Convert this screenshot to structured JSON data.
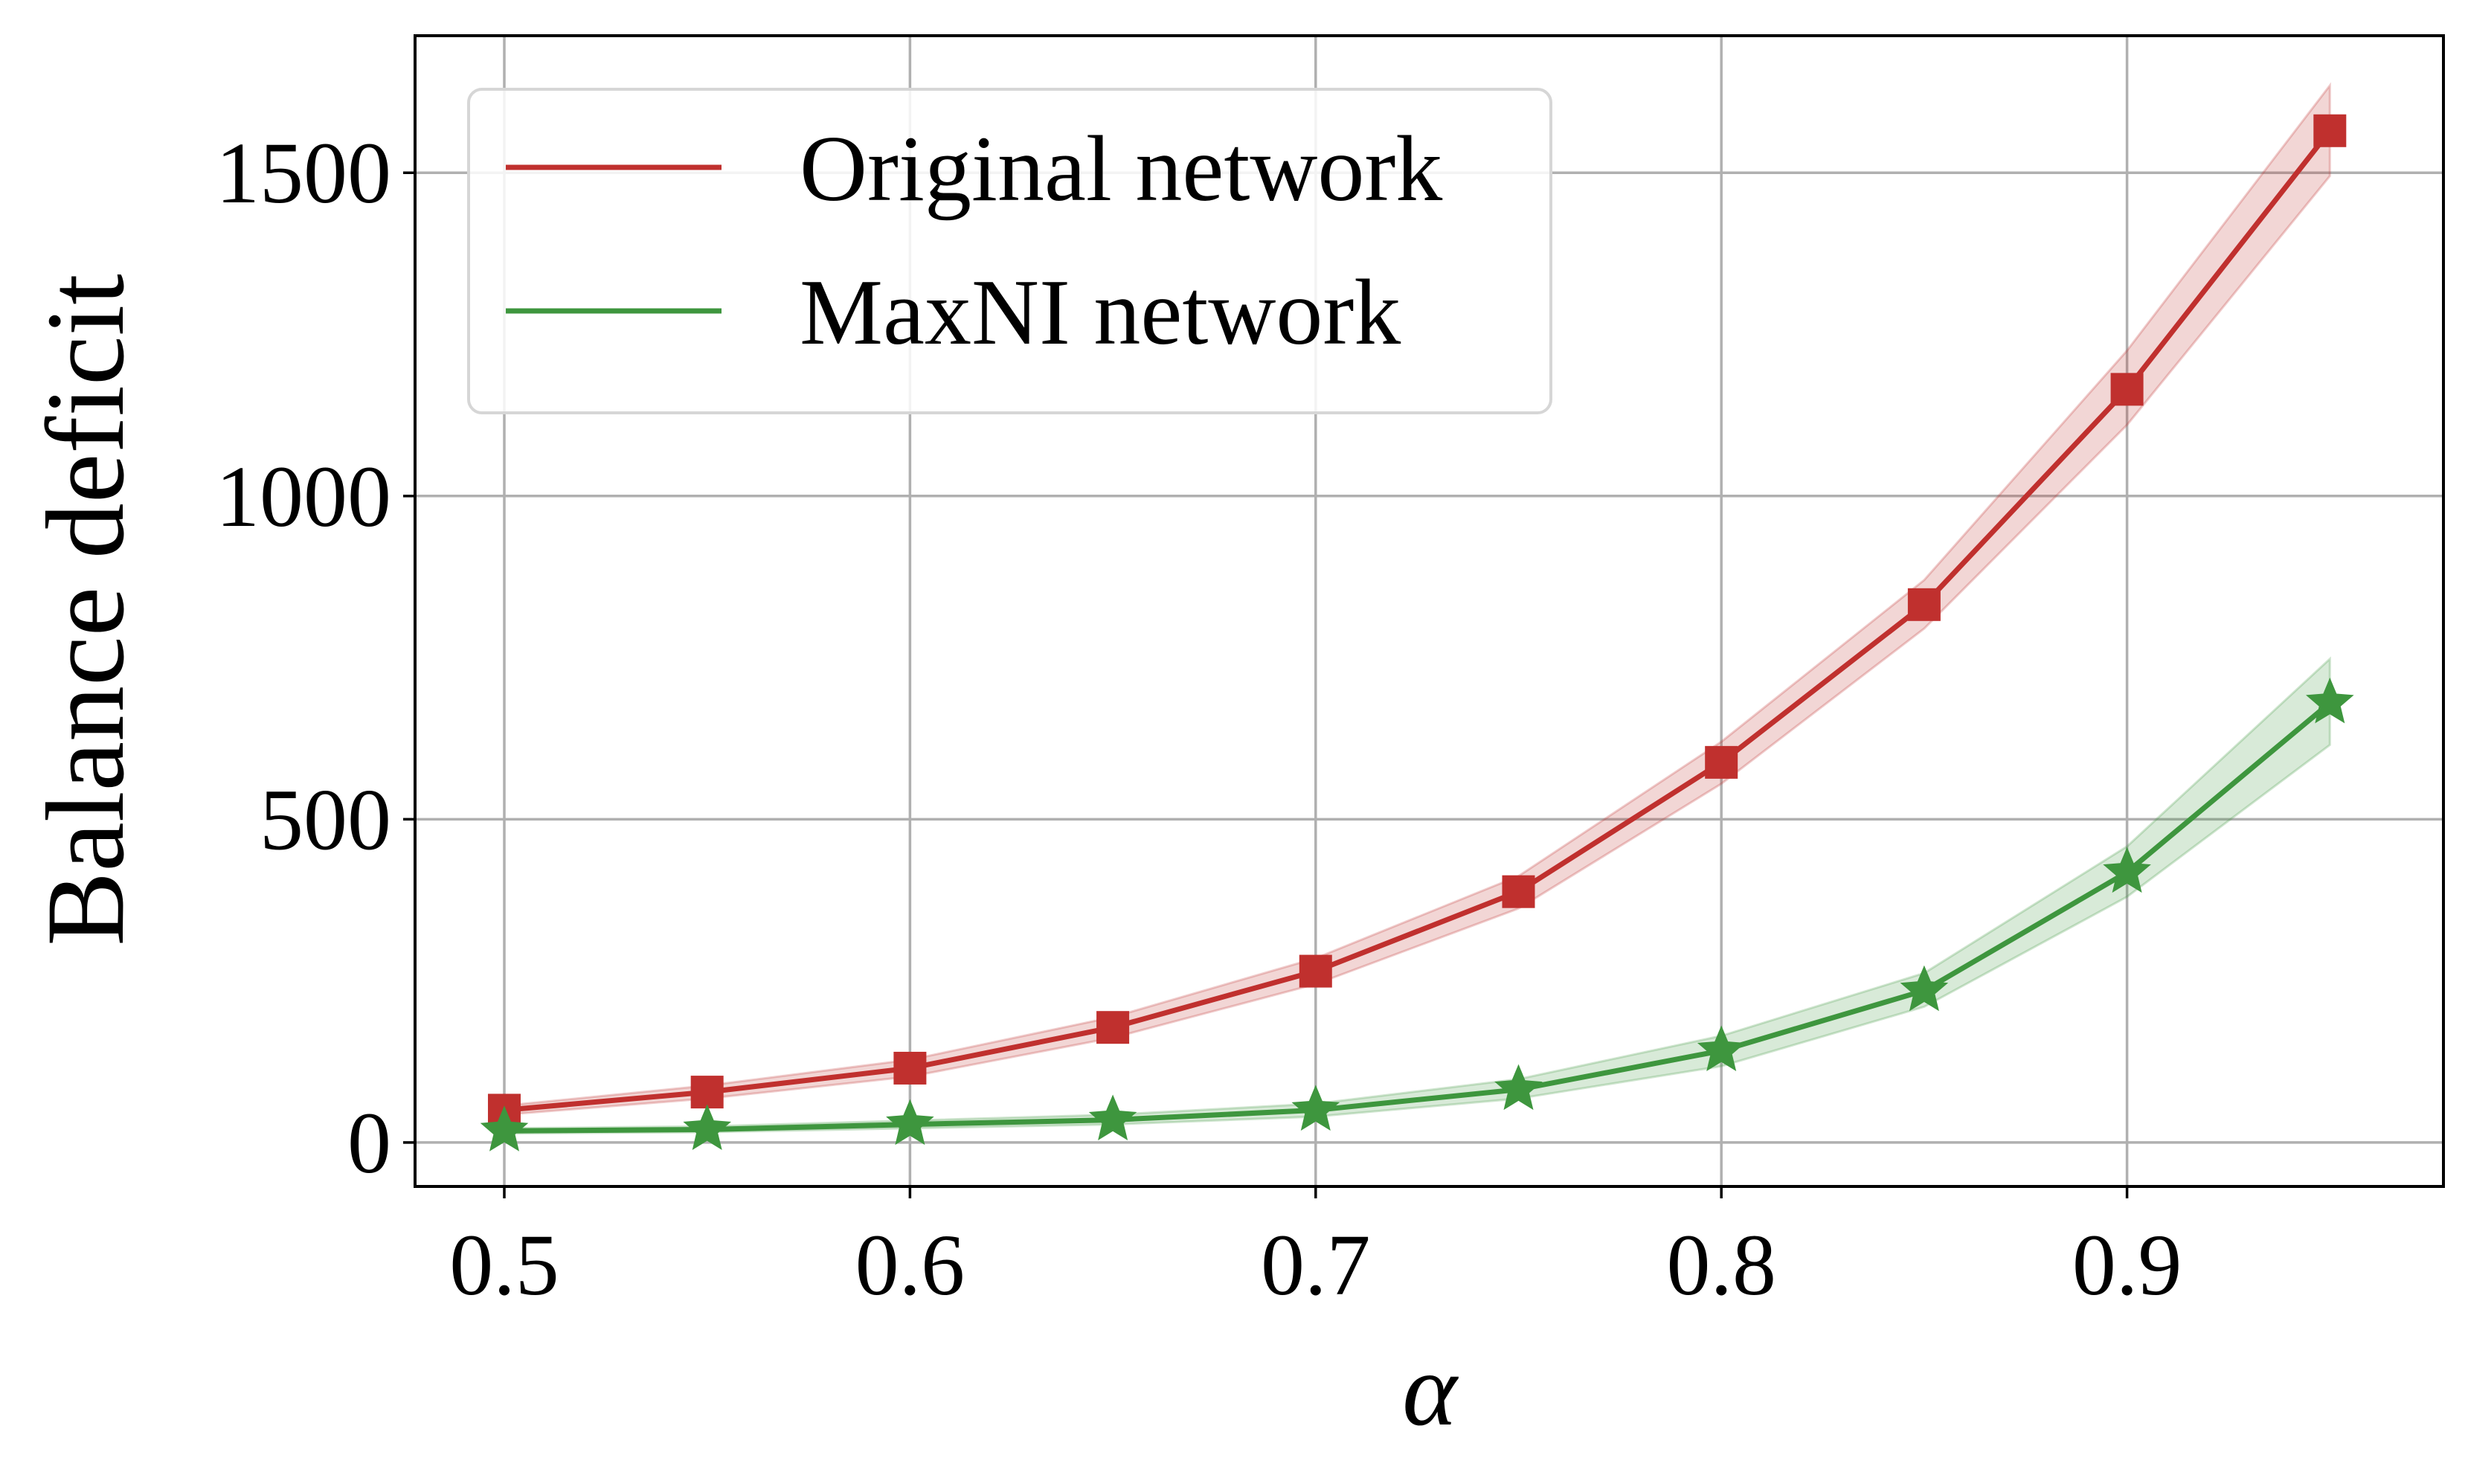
{
  "chart_data": {
    "type": "line",
    "xlabel": "α",
    "ylabel": "Balance deficit",
    "xlim": [
      0.478,
      0.978
    ],
    "ylim": [
      -68,
      1712
    ],
    "xticks": [
      0.5,
      0.6,
      0.7,
      0.8,
      0.9
    ],
    "xtick_labels": [
      "0.5",
      "0.6",
      "0.7",
      "0.8",
      "0.9"
    ],
    "yticks": [
      0,
      500,
      1000,
      1500
    ],
    "ytick_labels": [
      "0",
      "500",
      "1000",
      "1500"
    ],
    "grid": true,
    "legend_position": "top-left",
    "x": [
      0.5,
      0.55,
      0.6,
      0.65,
      0.7,
      0.75,
      0.8,
      0.85,
      0.9,
      0.95
    ],
    "series": [
      {
        "name": "Original network",
        "color": "#c0302e",
        "marker": "square",
        "values": [
          50,
          78,
          115,
          178,
          265,
          388,
          588,
          832,
          1165,
          1565
        ],
        "band_lower": [
          43,
          68,
          102,
          162,
          245,
          362,
          555,
          795,
          1110,
          1495
        ],
        "band_upper": [
          57,
          88,
          128,
          194,
          285,
          412,
          620,
          870,
          1225,
          1635
        ]
      },
      {
        "name": "MaxNI network",
        "color": "#3e963e",
        "marker": "star",
        "values": [
          18,
          20,
          28,
          35,
          50,
          82,
          142,
          235,
          418,
          680
        ],
        "band_lower": [
          14,
          16,
          22,
          28,
          40,
          68,
          118,
          210,
          380,
          615
        ],
        "band_upper": [
          22,
          25,
          34,
          43,
          60,
          98,
          165,
          262,
          458,
          748
        ]
      }
    ]
  }
}
